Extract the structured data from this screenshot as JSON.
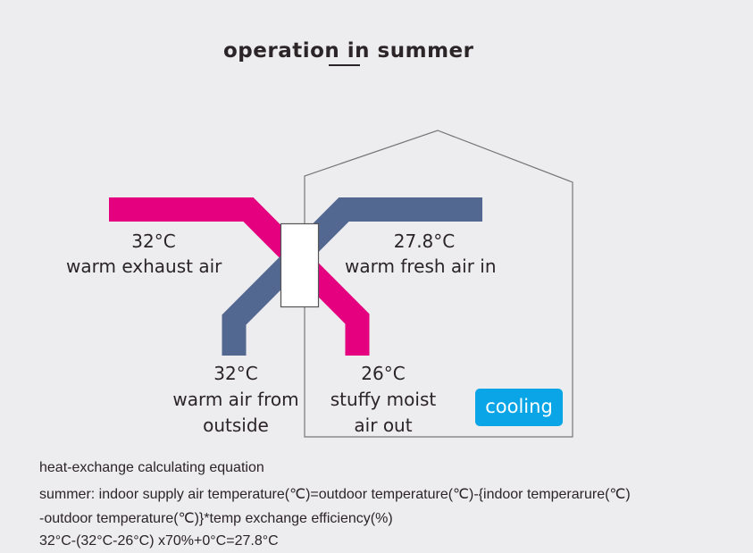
{
  "title": "operation in summer",
  "colors": {
    "exhaust": "#e4007f",
    "fresh": "#536890",
    "cooling": "#0aa5e6",
    "background": "#edecee"
  },
  "labels": {
    "exhaust_temp": "32°C",
    "exhaust_name": "warm  exhaust air",
    "fresh_temp": "27.8°C",
    "fresh_name": "warm fresh air in",
    "outside_temp": "32°C",
    "outside_name_1": "warm air from",
    "outside_name_2": "outside",
    "stuffy_temp": "26°C",
    "stuffy_name_1": "stuffy moist",
    "stuffy_name_2": "air out"
  },
  "cooling_badge": "cooling",
  "equation": {
    "heading": "heat-exchange calculating equation",
    "line1": "summer: indoor supply air temperature(℃)=outdoor temperature(℃)-{indoor temperarure(℃)",
    "line2": "-outdoor temperature(℃)}*temp exchange efficiency(%)",
    "line3": "32°C-(32°C-26°C) x70%+0°C=27.8°C"
  }
}
